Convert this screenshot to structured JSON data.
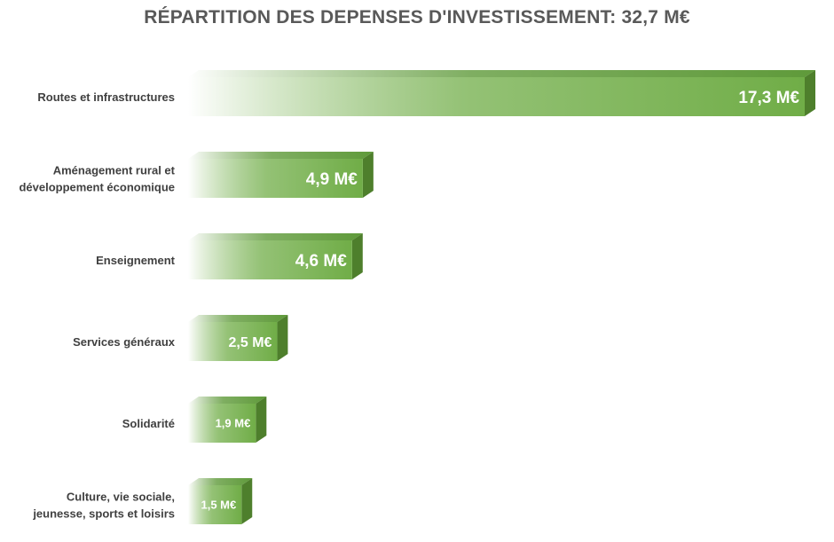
{
  "chart_data": {
    "type": "bar",
    "orientation": "horizontal",
    "title": "RÉPARTITION DES DEPENSES D'INVESTISSEMENT: 32,7 M€",
    "xlabel": "",
    "ylabel": "",
    "grid": false,
    "legend": "none",
    "unit": "M€",
    "categories": [
      [
        "Routes et infrastructures"
      ],
      [
        "Aménagement rural et",
        "développement économique"
      ],
      [
        "Enseignement"
      ],
      [
        "Services généraux"
      ],
      [
        "Solidarité"
      ],
      [
        "Culture, vie sociale,",
        "jeunesse, sports et loisirs"
      ]
    ],
    "values": [
      17.3,
      4.9,
      4.6,
      2.5,
      1.9,
      1.5
    ],
    "value_labels": [
      "17,3 M€",
      "4,9 M€",
      "4,6 M€",
      "2,5 M€",
      "1,9 M€",
      "1,5 M€"
    ],
    "colors": {
      "bar": "#70ad47",
      "bar_dark": "#4e7f2c",
      "bar_top": "#5f9a3a",
      "bar_fade": "#ffffff",
      "title": "#595959",
      "label": "#404040",
      "value_label": "#ffffff"
    }
  }
}
